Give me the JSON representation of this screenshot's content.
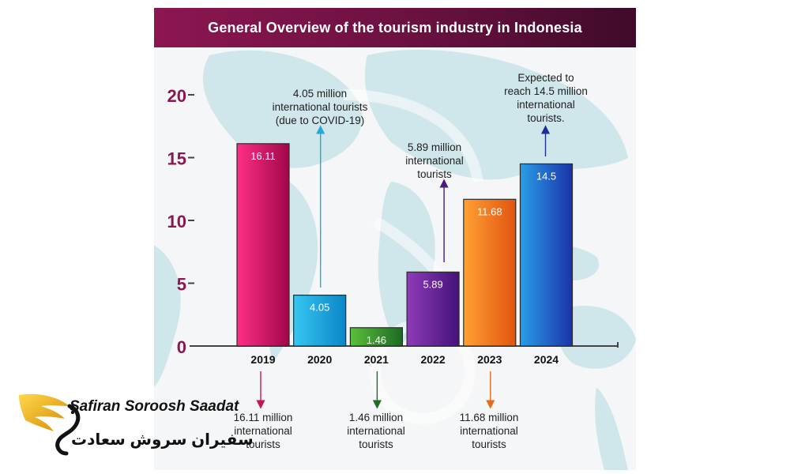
{
  "title": "General Overview of the tourism industry in Indonesia",
  "colors": {
    "title_bg": "#7a1247",
    "axis": "#444444",
    "tick_label": "#8c1651",
    "map": "#cfe6ea"
  },
  "chart_data": {
    "type": "bar",
    "categories": [
      "2019",
      "2020",
      "2021",
      "2022",
      "2023",
      "2024"
    ],
    "values": [
      16.11,
      4.05,
      1.46,
      5.89,
      11.68,
      14.5
    ],
    "value_labels": [
      "16.11",
      "4.05",
      "1.46",
      "5.89",
      "11.68",
      "14.5"
    ],
    "bar_colors": [
      [
        "#ff2f86",
        "#a0064a"
      ],
      [
        "#37c6f2",
        "#0a86c7"
      ],
      [
        "#5cbf3c",
        "#1b6b22"
      ],
      [
        "#8e3bb8",
        "#44127a"
      ],
      [
        "#ffa033",
        "#e25410"
      ],
      [
        "#2a9ee8",
        "#1a33a8"
      ]
    ],
    "yticks": [
      "0",
      "5",
      "10",
      "15",
      "20"
    ],
    "ylim": [
      0,
      20
    ],
    "grid": false,
    "xlabel": "",
    "ylabel": ""
  },
  "annotations": {
    "a2019": [
      "16.11 million",
      "international",
      "tourists"
    ],
    "a2020": [
      "4.05 million",
      "international tourists",
      "(due to COVID-19)"
    ],
    "a2021": [
      "1.46 million",
      "international",
      "tourists"
    ],
    "a2022": [
      "5.89 million",
      "international",
      "tourists"
    ],
    "a2023": [
      "11.68 million",
      "international",
      "tourists"
    ],
    "a2024": [
      "Expected to",
      "reach 14.5 million",
      "international",
      "tourists."
    ]
  },
  "arrow_colors": {
    "a2019": "#c2185b",
    "a2020": "#29a8d8",
    "a2021": "#1e6b2a",
    "a2022": "#4a1a80",
    "a2023": "#e86a1e",
    "a2024": "#1a2f9a"
  },
  "logo": {
    "brand_en": "Safiran Soroosh Saadat",
    "brand_fa": "سفیران سروش سعادت",
    "icon": "golden-eagle-wing-icon"
  }
}
